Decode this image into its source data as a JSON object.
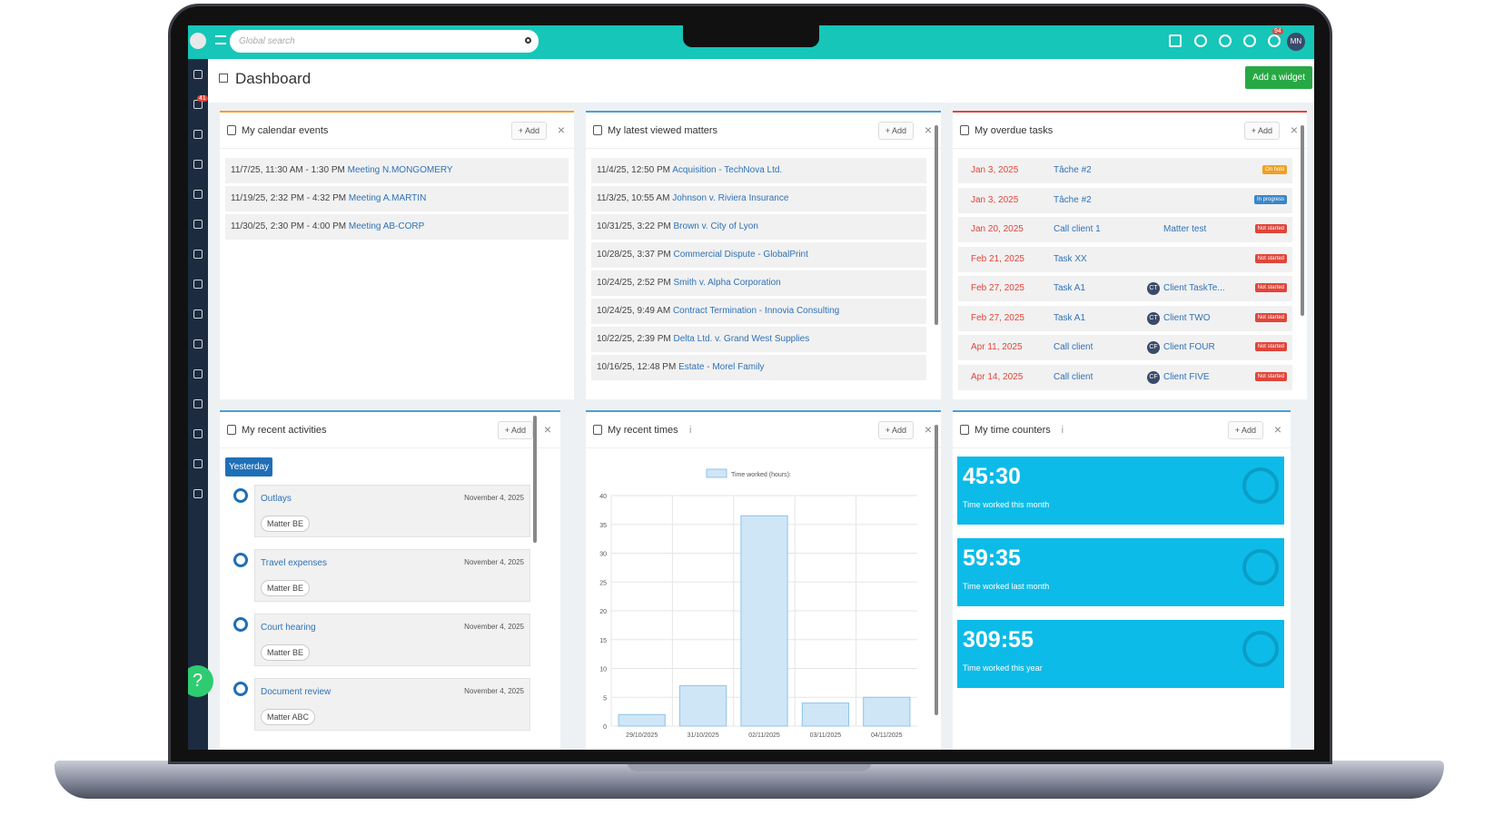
{
  "header": {
    "search_placeholder": "Global search",
    "page_title": "Dashboard",
    "add_widget": "Add a widget",
    "sidebar_badge": "41",
    "timer_badge": "94",
    "user_initials": "MN"
  },
  "widgets": {
    "calendar": {
      "title": "My calendar events",
      "add": "+ Add",
      "events": [
        {
          "time": "11/7/25, 11:30 AM - 1:30 PM",
          "title": "Meeting N.MONGOMERY"
        },
        {
          "time": "11/19/25, 2:32 PM - 4:32 PM",
          "title": "Meeting A.MARTIN"
        },
        {
          "time": "11/30/25, 2:30 PM - 4:00 PM",
          "title": "Meeting AB-CORP"
        }
      ]
    },
    "matters": {
      "title": "My latest viewed matters",
      "add": "+ Add",
      "items": [
        {
          "time": "11/4/25, 12:50 PM",
          "title": "Acquisition - TechNova Ltd."
        },
        {
          "time": "11/3/25, 10:55 AM",
          "title": "Johnson v. Riviera Insurance"
        },
        {
          "time": "10/31/25, 3:22 PM",
          "title": "Brown v. City of Lyon"
        },
        {
          "time": "10/28/25, 3:37 PM",
          "title": "Commercial Dispute - GlobalPrint"
        },
        {
          "time": "10/24/25, 2:52 PM",
          "title": "Smith v. Alpha Corporation"
        },
        {
          "time": "10/24/25, 9:49 AM",
          "title": "Contract Termination - Innovia Consulting"
        },
        {
          "time": "10/22/25, 2:39 PM",
          "title": "Delta Ltd. v. Grand West Supplies"
        },
        {
          "time": "10/16/25, 12:48 PM",
          "title": "Estate - Morel Family"
        }
      ]
    },
    "overdue": {
      "title": "My overdue tasks",
      "add": "+ Add",
      "rows": [
        {
          "date": "Jan 3, 2025",
          "task": "Tâche #2",
          "status": "On hold",
          "status_color": "#f0a020"
        },
        {
          "date": "Jan 3, 2025",
          "task": "Tâche #2",
          "status": "In progress",
          "status_color": "#3a86c8"
        },
        {
          "date": "Jan 20, 2025",
          "task": "Call client 1",
          "matter": "Matter test",
          "status": "Not started",
          "status_color": "#e0453a"
        },
        {
          "date": "Feb 21, 2025",
          "task": "Task XX",
          "status": "Not started",
          "status_color": "#e0453a"
        },
        {
          "date": "Feb 27, 2025",
          "task": "Task A1",
          "matter_initials": "CT",
          "matter": "Client TaskTe...",
          "status": "Not started",
          "status_color": "#e0453a"
        },
        {
          "date": "Feb 27, 2025",
          "task": "Task A1",
          "matter_initials": "CT",
          "matter": "Client TWO",
          "status": "Not started",
          "status_color": "#e0453a"
        },
        {
          "date": "Apr 11, 2025",
          "task": "Call client",
          "matter_initials": "CF",
          "matter": "Client FOUR",
          "status": "Not started",
          "status_color": "#e0453a"
        },
        {
          "date": "Apr 14, 2025",
          "task": "Call client",
          "matter_initials": "CF",
          "matter": "Client FIVE",
          "status": "Not started",
          "status_color": "#e0453a"
        }
      ]
    },
    "activities": {
      "title": "My recent activities",
      "add": "+ Add",
      "group": "Yesterday",
      "items": [
        {
          "title": "Outlays",
          "date": "November 4, 2025",
          "matter": "Matter BE"
        },
        {
          "title": "Travel expenses",
          "date": "November 4, 2025",
          "matter": "Matter BE"
        },
        {
          "title": "Court hearing",
          "date": "November 4, 2025",
          "matter": "Matter BE"
        },
        {
          "title": "Document review",
          "date": "November 4, 2025",
          "matter": "Matter ABC"
        }
      ]
    },
    "recent_times": {
      "title": "My recent times",
      "info": "i",
      "add": "+ Add",
      "chart": {
        "type": "bar",
        "categories": [
          "29/10/2025",
          "31/10/2025",
          "02/11/2025",
          "03/11/2025",
          "04/11/2025"
        ],
        "series": [
          {
            "name": "Time worked (hours):",
            "color": "#cfe6f7",
            "values": [
              2,
              7,
              36.5,
              4,
              5
            ]
          }
        ],
        "ylim": [
          0,
          40
        ],
        "yticks": [
          0,
          5,
          10,
          15,
          20,
          25,
          30,
          35,
          40
        ],
        "grid": true
      }
    },
    "time_counters": {
      "title": "My time counters",
      "info": "i",
      "add": "+ Add",
      "counters": [
        {
          "value": "45:30",
          "label": "Time worked this month"
        },
        {
          "value": "59:35",
          "label": "Time worked last month"
        },
        {
          "value": "309:55",
          "label": "Time worked this year"
        }
      ]
    }
  },
  "help": "?"
}
